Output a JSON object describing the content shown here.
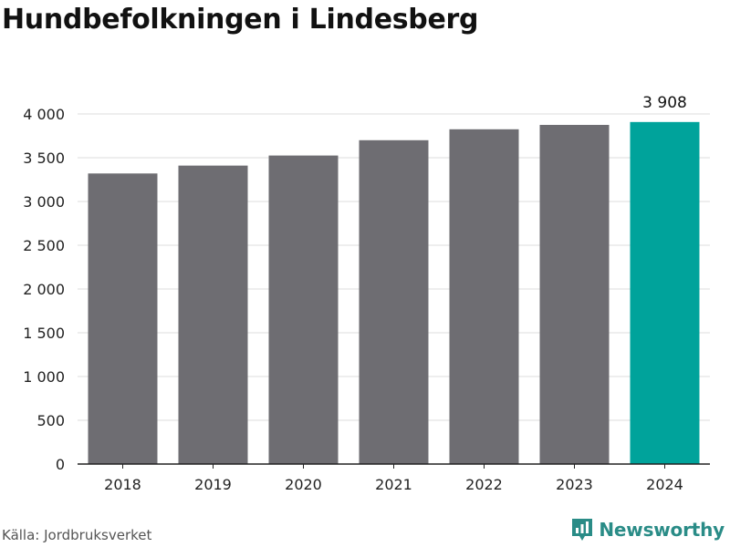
{
  "title": "Hundbefolkningen i Lindesberg",
  "source": "Källa: Jordbruksverket",
  "brand": {
    "name": "Newsworthy",
    "icon": "bar-chart-pin-icon",
    "color": "#2a8c87"
  },
  "chart_data": {
    "type": "bar",
    "title": "Hundbefolkningen i Lindesberg",
    "xlabel": "",
    "ylabel": "",
    "categories": [
      "2018",
      "2019",
      "2020",
      "2021",
      "2022",
      "2023",
      "2024"
    ],
    "values": [
      3320,
      3410,
      3525,
      3700,
      3825,
      3875,
      3908
    ],
    "ylim": [
      0,
      4000
    ],
    "yticks": [
      0,
      500,
      1000,
      1500,
      2000,
      2500,
      3000,
      3500,
      4000
    ],
    "ytick_labels": [
      "0",
      "500",
      "1 000",
      "1 500",
      "2 000",
      "2 500",
      "3 000",
      "3 500",
      "4 000"
    ],
    "data_labels": [
      {
        "index": 6,
        "text": "3 908"
      }
    ],
    "grid": true,
    "colors": {
      "bar": "#6e6d72",
      "highlight": "#00a39b",
      "grid": "#dddddd",
      "axis": "#222222"
    },
    "highlight_index": 6
  }
}
